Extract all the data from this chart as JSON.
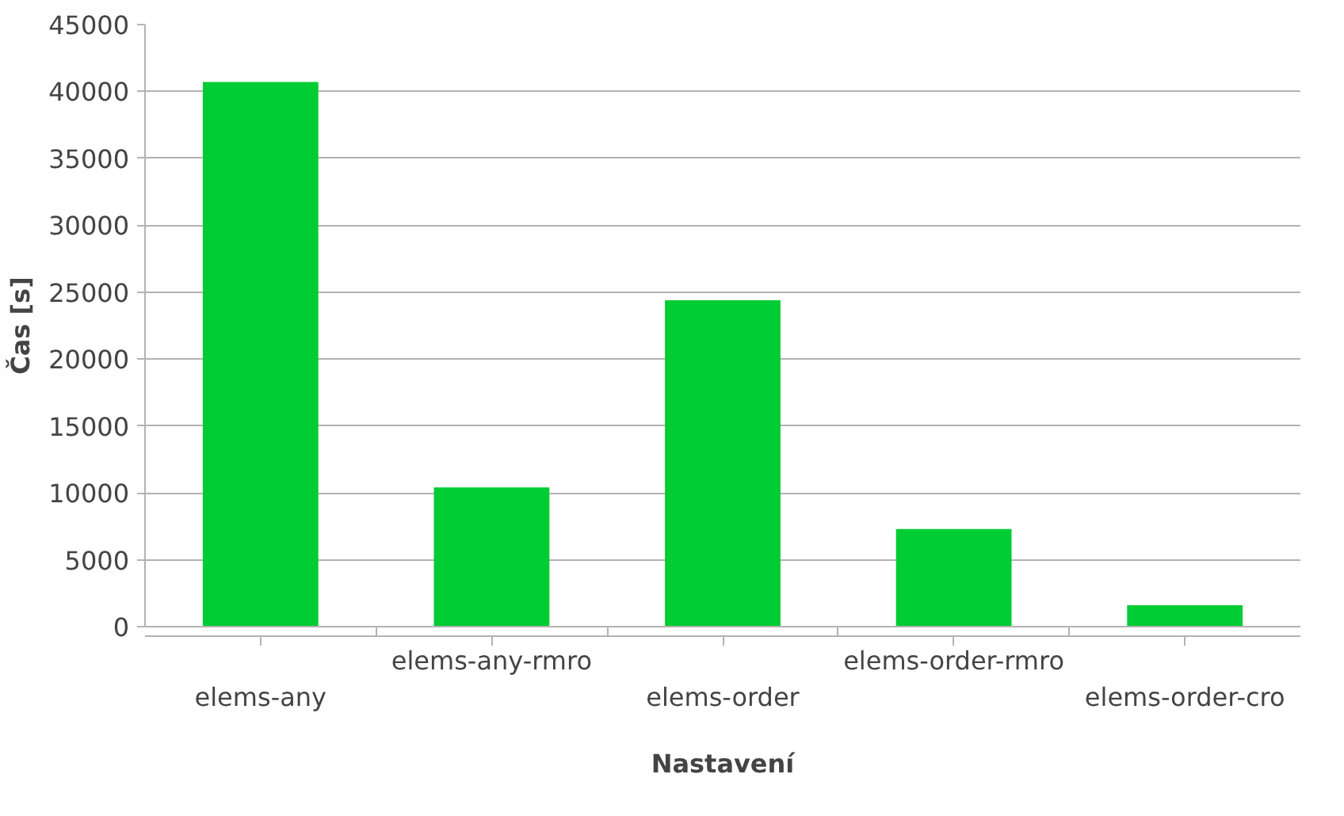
{
  "chart_data": {
    "type": "bar",
    "xlabel": "Nastavení",
    "ylabel": "Čas [s]",
    "categories": [
      "elems-any",
      "elems-any-rmro",
      "elems-order",
      "elems-order-rmro",
      "elems-order-cro"
    ],
    "values": [
      40700,
      10400,
      24400,
      7300,
      1600
    ],
    "color": "#00cc33",
    "ylim": [
      0,
      45000
    ],
    "yticks": [
      0,
      5000,
      10000,
      15000,
      20000,
      25000,
      30000,
      35000,
      40000,
      45000
    ],
    "grid": "y"
  }
}
